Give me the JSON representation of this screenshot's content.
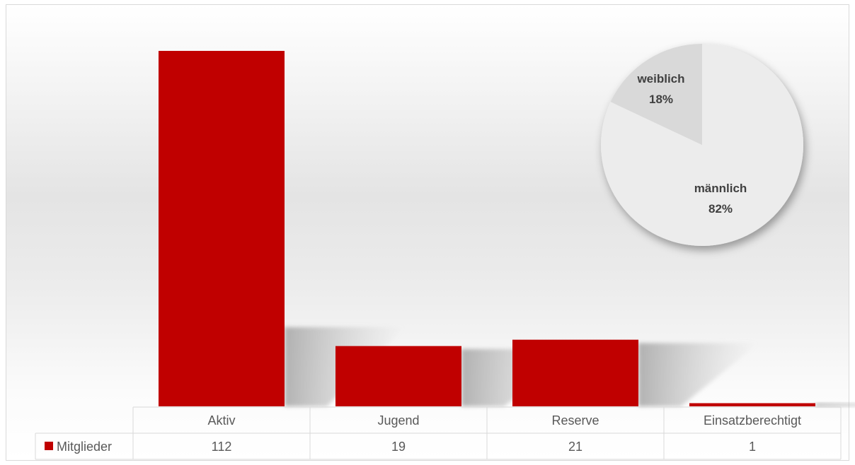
{
  "chart_data": [
    {
      "type": "bar",
      "categories": [
        "Aktiv",
        "Jugend",
        "Reserve",
        "Einsatzberechtigt"
      ],
      "series": [
        {
          "name": "Mitglieder",
          "values": [
            112,
            19,
            21,
            1
          ]
        }
      ],
      "ylim": [
        0,
        112
      ],
      "data_table": true,
      "grid": false,
      "colors": {
        "bar": "#c00000",
        "legend_key": "#c00000"
      }
    },
    {
      "type": "pie",
      "labels": [
        "weiblich",
        "männlich"
      ],
      "values": [
        18,
        82
      ],
      "value_labels": [
        "18%",
        "82%"
      ],
      "colors": {
        "weiblich": "#d9d9d9",
        "männlich": "#ececec"
      }
    }
  ]
}
